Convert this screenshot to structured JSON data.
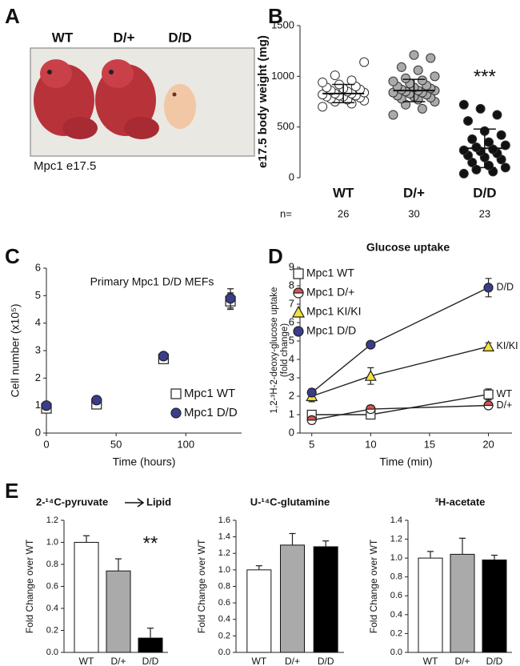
{
  "panel_a": {
    "label": "A",
    "genotypes": [
      "WT",
      "D/+",
      "D/D"
    ],
    "caption": "Mpc1 e17.5"
  },
  "chart_data": [
    {
      "type": "strip",
      "label": "B",
      "ylabel": "e17.5 body weight (mg)",
      "categories": [
        "WT",
        "D/+",
        "D/D"
      ],
      "n_label": "n=",
      "n": [
        26,
        30,
        23
      ],
      "annotation": "***",
      "ylim": [
        0,
        1500
      ],
      "yticks": [
        0,
        500,
        1000,
        1500
      ],
      "groups": [
        {
          "color": "#ffffff",
          "mean": 830,
          "sd": 90,
          "values": [
            700,
            730,
            750,
            760,
            770,
            780,
            790,
            800,
            800,
            810,
            810,
            820,
            830,
            830,
            840,
            850,
            860,
            870,
            880,
            890,
            900,
            920,
            940,
            960,
            1010,
            1140
          ]
        },
        {
          "color": "#aaaaaa",
          "mean": 860,
          "sd": 110,
          "values": [
            620,
            680,
            720,
            750,
            770,
            780,
            790,
            800,
            810,
            820,
            830,
            840,
            840,
            850,
            860,
            860,
            870,
            880,
            890,
            900,
            910,
            930,
            950,
            960,
            980,
            1000,
            1060,
            1090,
            1180,
            1210
          ]
        },
        {
          "color": "#111111",
          "mean": 290,
          "sd": 190,
          "values": [
            40,
            60,
            80,
            100,
            120,
            150,
            180,
            200,
            220,
            240,
            260,
            270,
            280,
            300,
            320,
            350,
            380,
            420,
            460,
            560,
            620,
            680,
            720
          ]
        }
      ]
    },
    {
      "type": "scatter",
      "label": "C",
      "title": "Primary Mpc1 D/D MEFs",
      "xlabel": "Time (hours)",
      "ylabel": "Cell number (x10⁵)",
      "x": [
        0,
        36,
        84,
        132
      ],
      "xlim": [
        0,
        140
      ],
      "xticks": [
        0,
        50,
        100
      ],
      "ylim": [
        0,
        6
      ],
      "yticks": [
        0,
        1,
        2,
        3,
        4,
        5,
        6
      ],
      "series": [
        {
          "name": "Mpc1 WT",
          "color": "#ffffff",
          "marker": "square",
          "values": [
            0.9,
            1.05,
            2.7,
            4.8
          ],
          "errors": [
            0.1,
            0.1,
            0.15,
            0.3
          ]
        },
        {
          "name": "Mpc1 D/D",
          "color": "#3a3d8c",
          "marker": "circle",
          "values": [
            1.0,
            1.2,
            2.8,
            4.9
          ],
          "errors": [
            0.05,
            0.08,
            0.12,
            0.35
          ]
        }
      ]
    },
    {
      "type": "line",
      "label": "D",
      "title": "Glucose uptake",
      "xlabel": "Time (min)",
      "ylabel": [
        "1,2-³H-2-deoxy-glucose uptake",
        "(fold change)"
      ],
      "x": [
        5,
        10,
        20
      ],
      "xlim": [
        4,
        22
      ],
      "xticks": [
        5,
        10,
        15,
        20
      ],
      "ylim": [
        0,
        9
      ],
      "yticks": [
        0,
        1,
        2,
        3,
        4,
        5,
        6,
        7,
        8,
        9
      ],
      "series": [
        {
          "name": "Mpc1 WT",
          "end_label": "WT",
          "color": "#ffffff",
          "marker": "square",
          "values": [
            1.0,
            1.0,
            2.1
          ],
          "errors": [
            0.2,
            0.15,
            0.3
          ]
        },
        {
          "name": "Mpc1 D/+",
          "end_label": "D/+",
          "color": "#d9534f",
          "marker": "half",
          "values": [
            0.7,
            1.3,
            1.5
          ],
          "errors": [
            0.2,
            0.2,
            0.15
          ]
        },
        {
          "name": "Mpc1 KI/KI",
          "end_label": "KI/KI",
          "color": "#f2e33a",
          "marker": "triangle",
          "values": [
            2.0,
            3.1,
            4.7
          ],
          "errors": [
            0.3,
            0.45,
            0.2
          ]
        },
        {
          "name": "Mpc1 D/D",
          "end_label": "D/D",
          "color": "#3a3d8c",
          "marker": "circle",
          "values": [
            2.2,
            4.8,
            7.9
          ],
          "errors": [
            0.2,
            0.1,
            0.5
          ]
        }
      ]
    },
    {
      "type": "bar",
      "label": "E",
      "title": "2-¹⁴C-pyruvate",
      "title_target": "Lipid",
      "ylabel": "Fold Change over WT",
      "annotation": "**",
      "categories": [
        "WT",
        "D/+",
        "D/D"
      ],
      "colors": [
        "#ffffff",
        "#aaaaaa",
        "#000000"
      ],
      "values": [
        1.0,
        0.74,
        0.13
      ],
      "errors": [
        0.06,
        0.11,
        0.09
      ],
      "ylim": [
        0,
        1.2
      ],
      "yticks": [
        {
          "value": 0,
          "label": "0.0"
        },
        {
          "value": 0.2,
          "label": "0.2"
        },
        {
          "value": 0.4,
          "label": "0.4"
        },
        {
          "value": 0.6,
          "label": "0.6"
        },
        {
          "value": 0.8,
          "label": "0.8"
        },
        {
          "value": 1,
          "label": "1.0"
        },
        {
          "value": 1.2,
          "label": "1.2"
        }
      ]
    },
    {
      "type": "bar",
      "title": "U-¹⁴C-glutamine",
      "ylabel": "Fold Change over WT",
      "categories": [
        "WT",
        "D/+",
        "D/D"
      ],
      "colors": [
        "#ffffff",
        "#aaaaaa",
        "#000000"
      ],
      "values": [
        1.0,
        1.3,
        1.28
      ],
      "errors": [
        0.05,
        0.14,
        0.07
      ],
      "ylim": [
        0,
        1.6
      ],
      "yticks": [
        {
          "value": 0,
          "label": "0.0"
        },
        {
          "value": 0.2,
          "label": "0.2"
        },
        {
          "value": 0.4,
          "label": "0.4"
        },
        {
          "value": 0.6,
          "label": "0.6"
        },
        {
          "value": 0.8,
          "label": "0.8"
        },
        {
          "value": 1,
          "label": "1.0"
        },
        {
          "value": 1.2,
          "label": "1.2"
        },
        {
          "value": 1.4,
          "label": "1.4"
        },
        {
          "value": 1.6,
          "label": "1.6"
        }
      ]
    },
    {
      "type": "bar",
      "title": "³H-acetate",
      "ylabel": "Fold Change over WT",
      "categories": [
        "WT",
        "D/+",
        "D/D"
      ],
      "colors": [
        "#ffffff",
        "#aaaaaa",
        "#000000"
      ],
      "values": [
        1.0,
        1.04,
        0.98
      ],
      "errors": [
        0.07,
        0.17,
        0.05
      ],
      "ylim": [
        0,
        1.4
      ],
      "yticks": [
        {
          "value": 0,
          "label": "0.0"
        },
        {
          "value": 0.2,
          "label": "0.2"
        },
        {
          "value": 0.4,
          "label": "0.4"
        },
        {
          "value": 0.6,
          "label": "0.6"
        },
        {
          "value": 0.8,
          "label": "0.8"
        },
        {
          "value": 1,
          "label": "1.0"
        },
        {
          "value": 1.2,
          "label": "1.2"
        },
        {
          "value": 1.4,
          "label": "1.4"
        }
      ]
    }
  ]
}
